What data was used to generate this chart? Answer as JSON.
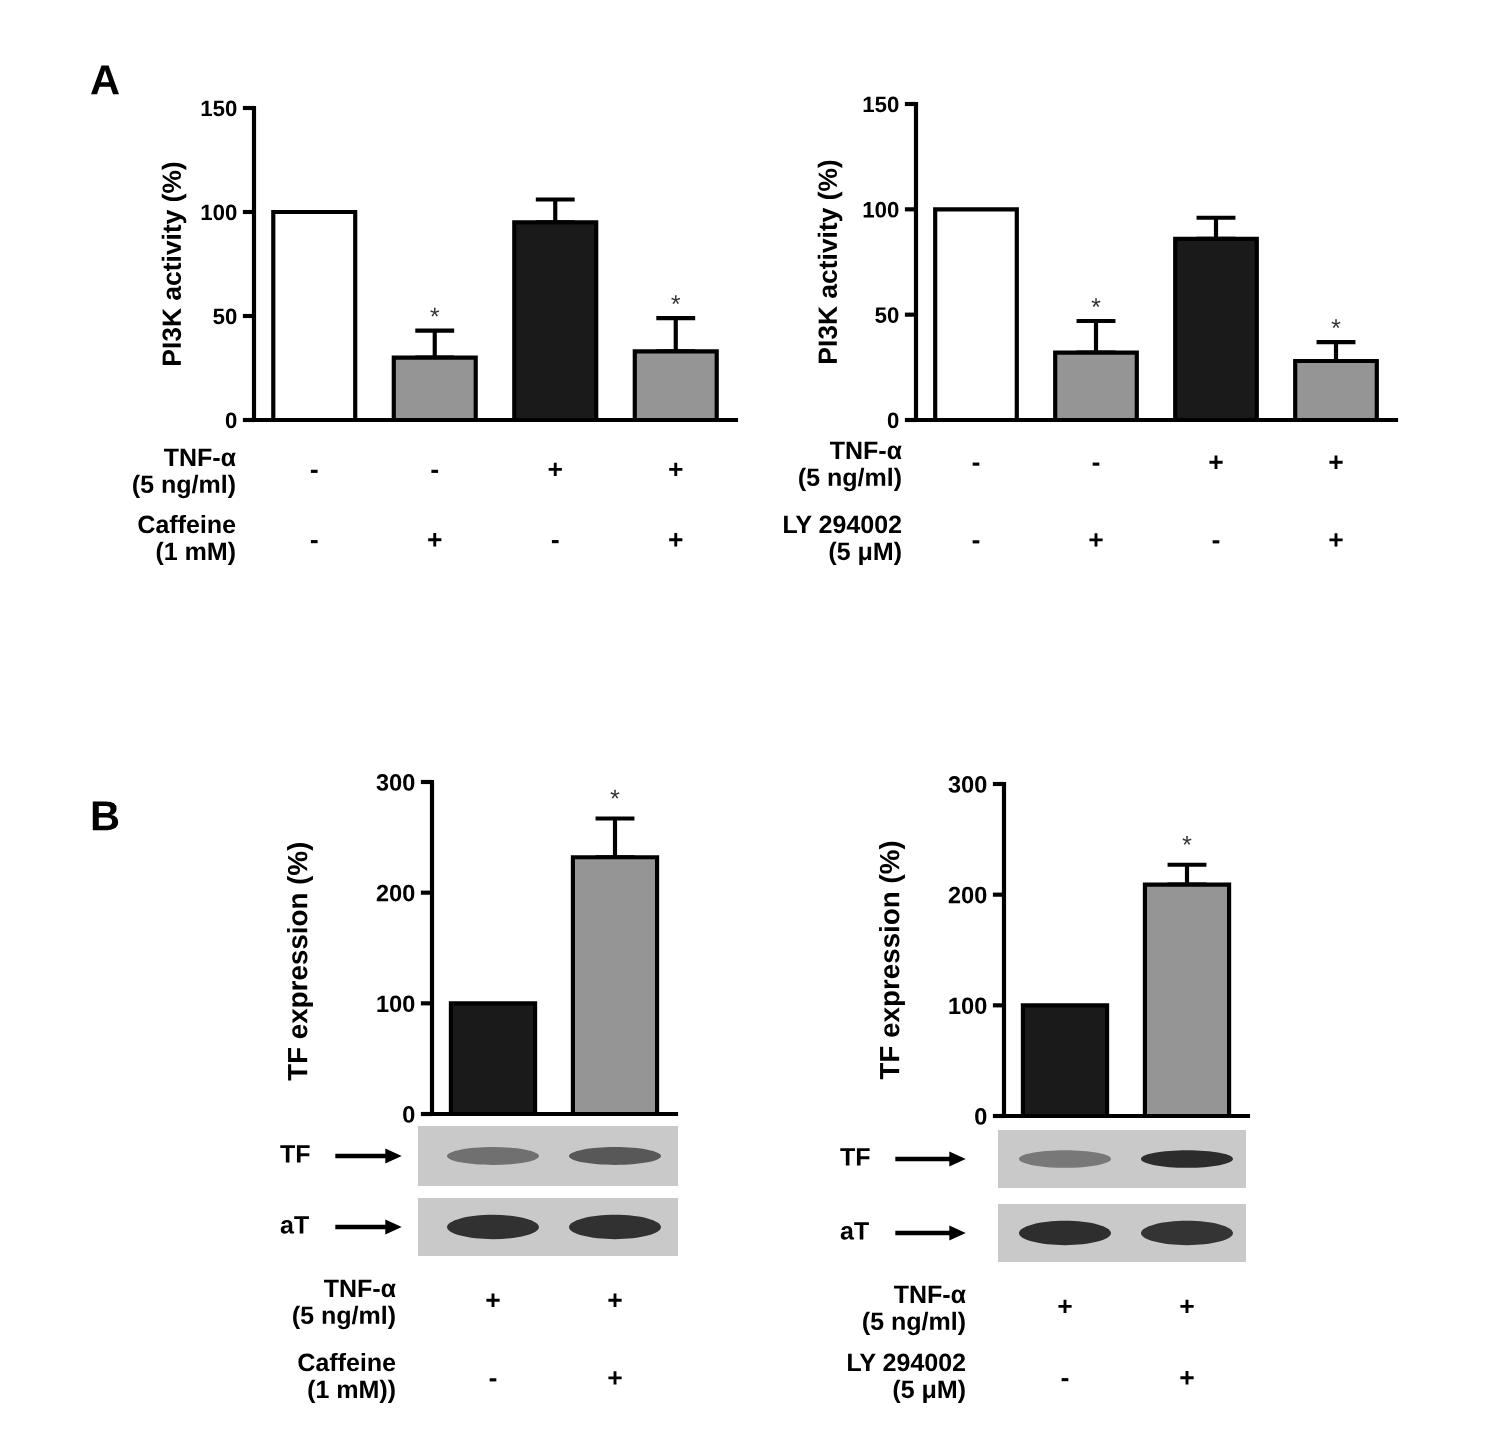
{
  "chart_data": [
    {
      "type": "bar",
      "title": "A",
      "categories": [
        "-\n-",
        "-\n+",
        "+\n-",
        "+\n+"
      ],
      "values": [
        100,
        30,
        95,
        33
      ],
      "colors": [
        "#ffffff",
        "#959595",
        "#1a1a1a",
        "#959595"
      ],
      "errors": [
        null,
        [
          30,
          43
        ],
        [
          95,
          106
        ],
        [
          33,
          49
        ]
      ],
      "ylabel": "PI3K activity (%)",
      "ylim": [
        0,
        150
      ],
      "yticks": [
        0,
        50,
        100,
        150
      ],
      "annotations": [
        "TNF-α\n(5 ng/ml)",
        "Caffeine\n(1 mM)",
        {
          "text": "*",
          "x": "-\n+",
          "y": 43
        },
        {
          "text": "*",
          "x": "+\n+",
          "y": 49
        }
      ]
    },
    {
      "type": "bar",
      "categories": [
        "-\n-",
        "-\n+",
        "+\n-",
        "+\n+"
      ],
      "values": [
        100,
        32,
        86,
        28
      ],
      "colors": [
        "#ffffff",
        "#959595",
        "#1a1a1a",
        "#959595"
      ],
      "errors": [
        null,
        [
          32,
          47
        ],
        [
          86,
          96
        ],
        [
          28,
          37
        ]
      ],
      "ylabel": "PI3K activity (%)",
      "ylim": [
        0,
        150
      ],
      "yticks": [
        0,
        50,
        100,
        150
      ],
      "annotations": [
        "TNF-α\n(5 ng/ml)",
        "LY 294002\n(5 μM)",
        {
          "text": "*",
          "x": "-\n+",
          "y": 47
        },
        {
          "text": "*",
          "x": "+\n+",
          "y": 37
        }
      ]
    },
    {
      "type": "bar",
      "categories": [
        "+\n-",
        "+\n+"
      ],
      "values": [
        100,
        232
      ],
      "colors": [
        "#1a1a1a",
        "#959595"
      ],
      "errors": [
        null,
        [
          232,
          267
        ]
      ],
      "ylabel": "TF expression (%)",
      "ylim": [
        0,
        300
      ],
      "yticks": [
        0,
        100,
        200,
        300
      ],
      "annotations": [
        "TNF-α\n(5 ng/ml)",
        "Caffeine\n(1 mM))",
        "TF",
        "aT",
        "B",
        {
          "text": "*",
          "x": "+\n+",
          "y": 267
        }
      ]
    },
    {
      "type": "bar",
      "categories": [
        "+\n-",
        "+\n+"
      ],
      "values": [
        100,
        209
      ],
      "colors": [
        "#1a1a1a",
        "#959595"
      ],
      "errors": [
        null,
        [
          209,
          227
        ]
      ],
      "ylabel": "TF expression (%)",
      "ylim": [
        0,
        300
      ],
      "yticks": [
        0,
        100,
        200,
        300
      ],
      "annotations": [
        "TNF-α\n(5 ng/ml)",
        "LY 294002\n(5 μM)",
        "TF",
        "aT",
        {
          "text": "*",
          "x": "+\n+",
          "y": 227
        }
      ]
    }
  ]
}
